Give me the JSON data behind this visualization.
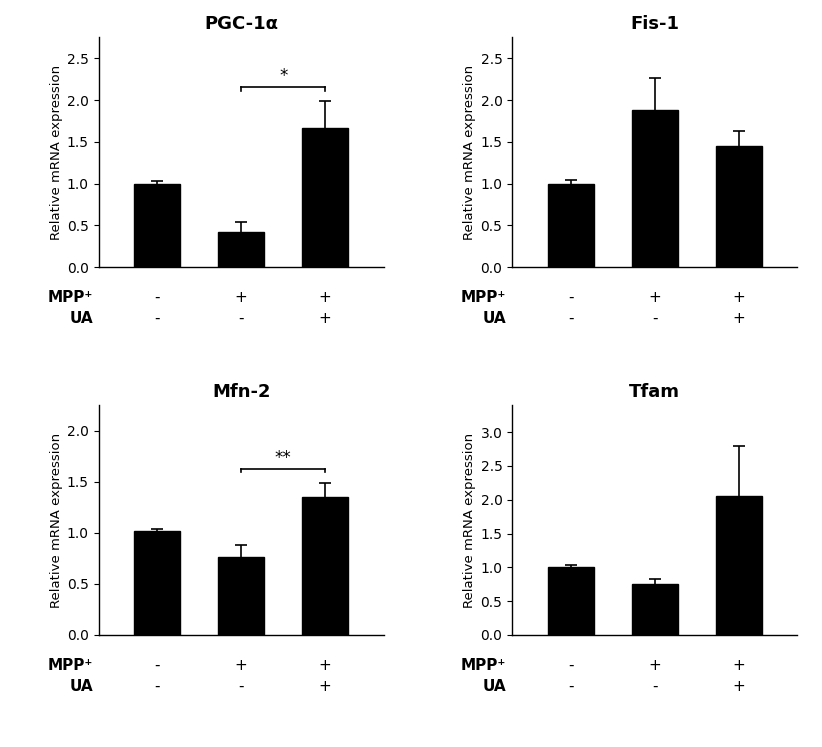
{
  "panels": [
    {
      "title": "PGC-1α",
      "values": [
        1.0,
        0.42,
        1.67
      ],
      "errors": [
        0.03,
        0.12,
        0.32
      ],
      "ylim": [
        0,
        2.75
      ],
      "yticks": [
        0,
        0.5,
        1.0,
        1.5,
        2.0,
        2.5
      ],
      "sig_bar": [
        1,
        2,
        "*"
      ]
    },
    {
      "title": "Fis-1",
      "values": [
        1.0,
        1.88,
        1.45
      ],
      "errors": [
        0.04,
        0.38,
        0.18
      ],
      "ylim": [
        0,
        2.75
      ],
      "yticks": [
        0,
        0.5,
        1.0,
        1.5,
        2.0,
        2.5
      ],
      "sig_bar": null
    },
    {
      "title": "Mfn-2",
      "values": [
        1.02,
        0.76,
        1.35
      ],
      "errors": [
        0.02,
        0.12,
        0.14
      ],
      "ylim": [
        0,
        2.25
      ],
      "yticks": [
        0,
        0.5,
        1.0,
        1.5,
        2.0
      ],
      "sig_bar": [
        1,
        2,
        "**"
      ]
    },
    {
      "title": "Tfam",
      "values": [
        1.0,
        0.75,
        2.05
      ],
      "errors": [
        0.04,
        0.08,
        0.75
      ],
      "ylim": [
        0,
        3.4
      ],
      "yticks": [
        0,
        0.5,
        1.0,
        1.5,
        2.0,
        2.5,
        3.0
      ],
      "sig_bar": null
    }
  ],
  "mpp_labels": [
    "-",
    "+",
    "+"
  ],
  "ua_labels": [
    "-",
    "-",
    "+"
  ],
  "bar_color": "#000000",
  "bar_width": 0.55,
  "xlabel_mpp": "MPP⁺",
  "xlabel_ua": "UA",
  "ylabel": "Relative mRNA expression",
  "background_color": "#ffffff",
  "x_positions": [
    1,
    2,
    3
  ],
  "xlim": [
    0.3,
    3.7
  ]
}
